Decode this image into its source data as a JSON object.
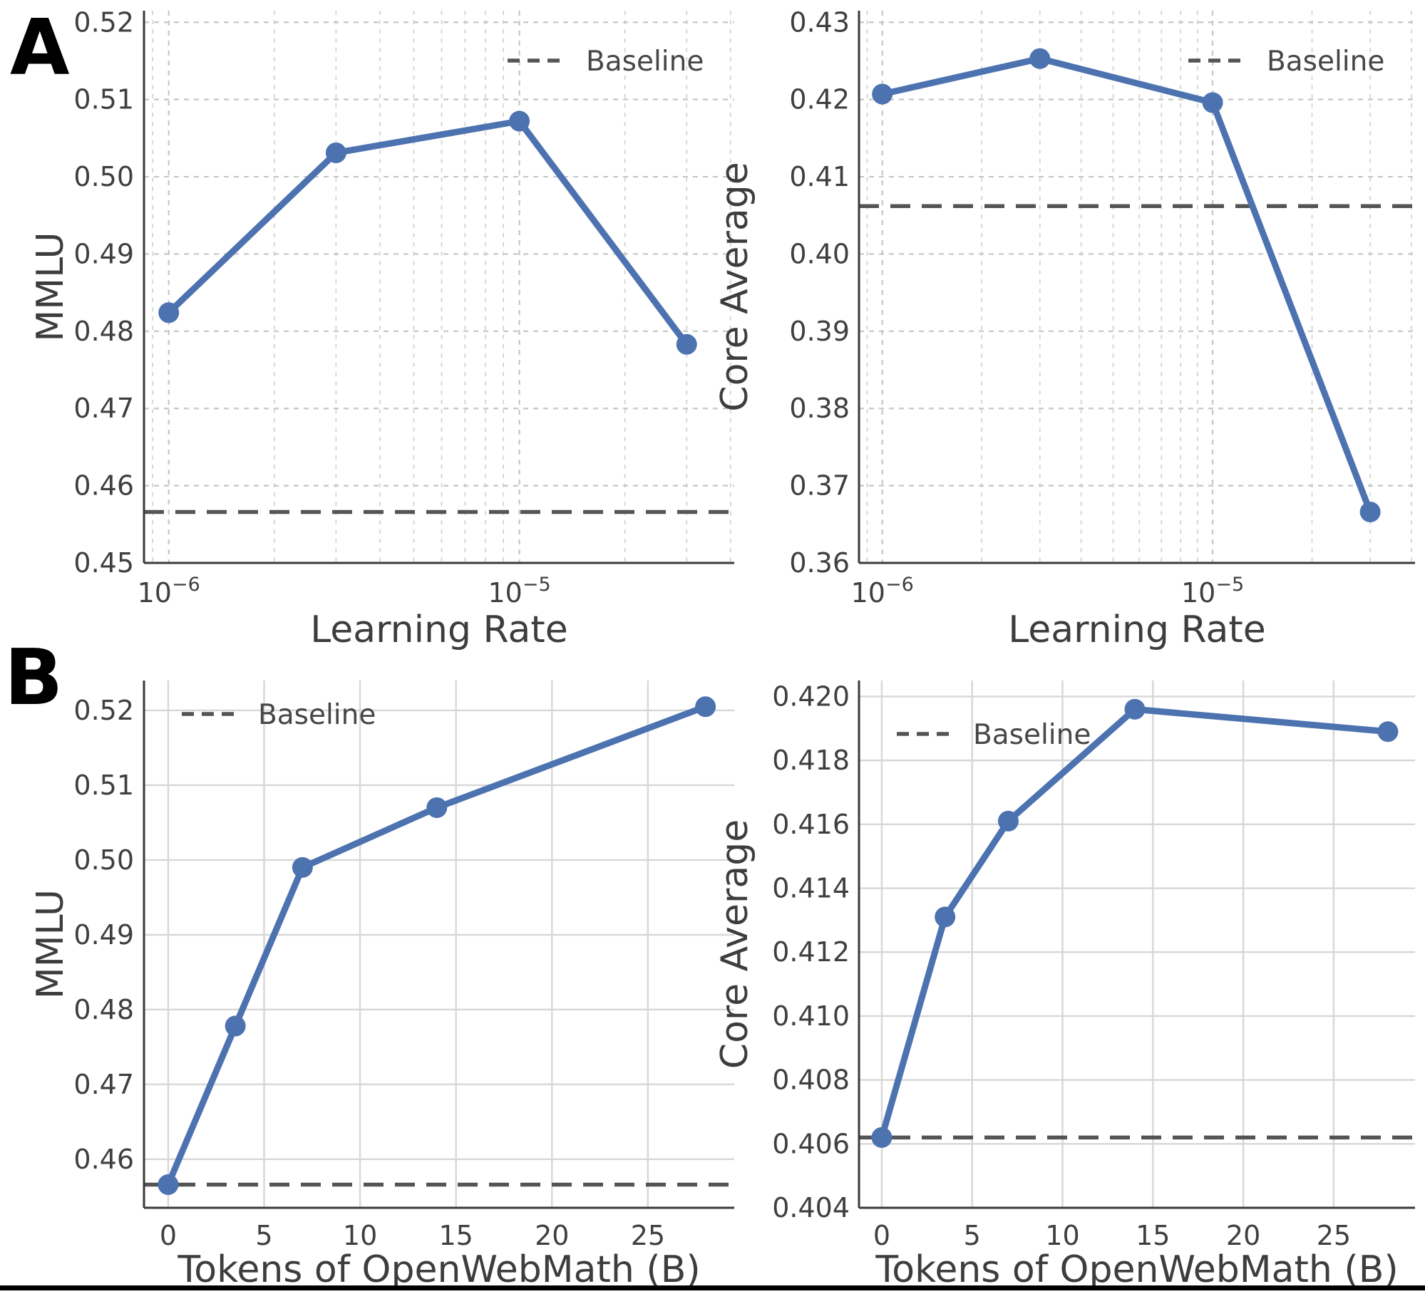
{
  "figure": {
    "panel_labels": [
      "A",
      "B"
    ],
    "accent_color": "#4C72B0",
    "baseline_color": "#545454",
    "text_color": "#3f3f3f",
    "legend_label": "Baseline"
  },
  "chart_data": [
    {
      "id": "lr-mmlu",
      "type": "line",
      "slot": "A-left",
      "xlabel": "Learning Rate",
      "ylabel": "MMLU",
      "x_scale": "log",
      "x": [
        1e-06,
        3e-06,
        1e-05,
        3e-05
      ],
      "y": [
        0.4824,
        0.5031,
        0.5072,
        0.4783
      ],
      "baseline": 0.4566,
      "legend": {
        "label": "Baseline",
        "loc": "upper-right"
      },
      "xlim": [
        8.5e-07,
        4.1e-05
      ],
      "ylim": [
        0.45,
        0.5215
      ],
      "yticks": [
        0.45,
        0.46,
        0.47,
        0.48,
        0.49,
        0.5,
        0.51,
        0.52
      ],
      "ytick_decimals": 2,
      "xticks_log": [
        {
          "value": 1e-06,
          "exp": "−6"
        },
        {
          "value": 1e-05,
          "exp": "−5"
        }
      ],
      "grid_style": "dashed"
    },
    {
      "id": "lr-core",
      "type": "line",
      "slot": "A-right",
      "xlabel": "Learning Rate",
      "ylabel": "Core Average",
      "x_scale": "log",
      "x": [
        1e-06,
        3e-06,
        1e-05,
        3e-05
      ],
      "y": [
        0.4207,
        0.4253,
        0.4196,
        0.3666
      ],
      "baseline": 0.4062,
      "legend": {
        "label": "Baseline",
        "loc": "upper-right"
      },
      "xlim": [
        8.5e-07,
        4.1e-05
      ],
      "ylim": [
        0.36,
        0.4315
      ],
      "yticks": [
        0.36,
        0.37,
        0.38,
        0.39,
        0.4,
        0.41,
        0.42,
        0.43
      ],
      "ytick_decimals": 2,
      "xticks_log": [
        {
          "value": 1e-06,
          "exp": "−6"
        },
        {
          "value": 1e-05,
          "exp": "−5"
        }
      ],
      "grid_style": "dashed"
    },
    {
      "id": "tokens-mmlu",
      "type": "line",
      "slot": "B-left",
      "xlabel": "Tokens of OpenWebMath (B)",
      "ylabel": "MMLU",
      "x_scale": "linear",
      "x": [
        0,
        3.5,
        7,
        14,
        28
      ],
      "y": [
        0.4566,
        0.4778,
        0.499,
        0.507,
        0.5205
      ],
      "baseline": 0.4566,
      "legend": {
        "label": "Baseline",
        "loc": "upper-left"
      },
      "xlim": [
        -1.26,
        29.5
      ],
      "ylim": [
        0.4535,
        0.524
      ],
      "yticks": [
        0.46,
        0.47,
        0.48,
        0.49,
        0.5,
        0.51,
        0.52
      ],
      "ytick_decimals": 2,
      "xticks": [
        0,
        5,
        10,
        15,
        20,
        25
      ],
      "grid_style": "solid"
    },
    {
      "id": "tokens-core",
      "type": "line",
      "slot": "B-right",
      "xlabel": "Tokens of OpenWebMath (B)",
      "ylabel": "Core Average",
      "x_scale": "linear",
      "x": [
        0,
        3.5,
        7,
        14,
        28
      ],
      "y": [
        0.4062,
        0.4131,
        0.4161,
        0.4196,
        0.4189
      ],
      "baseline": 0.4062,
      "legend": {
        "label": "Baseline",
        "loc": "upper-left-low"
      },
      "xlim": [
        -1.26,
        29.5
      ],
      "ylim": [
        0.404,
        0.4205
      ],
      "yticks": [
        0.404,
        0.406,
        0.408,
        0.41,
        0.412,
        0.414,
        0.416,
        0.418,
        0.42
      ],
      "ytick_decimals": 3,
      "xticks": [
        0,
        5,
        10,
        15,
        20,
        25
      ],
      "grid_style": "solid"
    }
  ]
}
